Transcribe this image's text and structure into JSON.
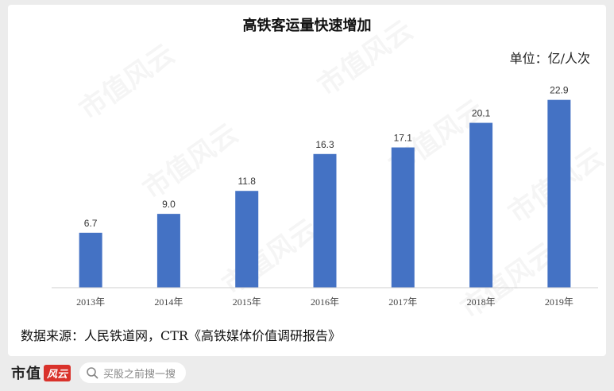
{
  "chart_data": {
    "type": "bar",
    "title": "高铁客运量快速增加",
    "unit_label": "单位：亿/人次",
    "categories": [
      "2013年",
      "2014年",
      "2015年",
      "2016年",
      "2017年",
      "2018年",
      "2019年"
    ],
    "values": [
      6.7,
      9.0,
      11.8,
      16.3,
      17.1,
      20.1,
      22.9
    ],
    "value_labels": [
      "6.7",
      "9.0",
      "11.8",
      "16.3",
      "17.1",
      "20.1",
      "22.9"
    ],
    "ylim": [
      0,
      25
    ],
    "bar_color": "#4472c4",
    "grid": false,
    "legend": "none"
  },
  "source_text": "数据来源：人民铁道网，CTR《高铁媒体价值调研报告》",
  "watermark_text": "市值风云",
  "footer": {
    "logo_text": "市值",
    "logo_badge": "风云",
    "search_placeholder": "买股之前搜一搜",
    "search_icon": "search-icon"
  }
}
